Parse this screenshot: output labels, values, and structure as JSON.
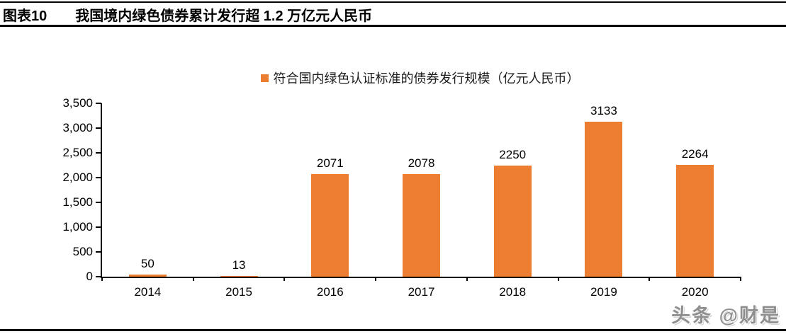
{
  "header": {
    "tag": "图表10",
    "title": "我国境内绿色债券累计发行超 1.2 万亿元人民币"
  },
  "chart_data": {
    "type": "bar",
    "title": "我国境内绿色债券累计发行超 1.2 万亿元人民币",
    "legend": "符合国内绿色认证标准的债券发行规模（亿元人民币）",
    "legend_position": "top-center",
    "categories": [
      "2014",
      "2015",
      "2016",
      "2017",
      "2018",
      "2019",
      "2020"
    ],
    "values": [
      50,
      13,
      2071,
      2078,
      2250,
      3133,
      2264
    ],
    "value_labels": [
      "50",
      "13",
      "2071",
      "2078",
      "2250",
      "3133",
      "2264"
    ],
    "xlabel": "",
    "ylabel": "",
    "ylim": [
      0,
      3500
    ],
    "yticks": [
      {
        "value": 3500,
        "label": "3,500"
      },
      {
        "value": 3000,
        "label": "3,000"
      },
      {
        "value": 2500,
        "label": "2,500"
      },
      {
        "value": 2000,
        "label": "2,000"
      },
      {
        "value": 1500,
        "label": "1,500"
      },
      {
        "value": 1000,
        "label": "1,000"
      },
      {
        "value": 500,
        "label": "500"
      },
      {
        "value": 0,
        "label": "0"
      }
    ],
    "grid": false,
    "bar_color": "#ED7D31"
  },
  "watermark": {
    "text": "头条 @财是"
  },
  "colors": {
    "bar": "#ED7D31",
    "axis": "#000000",
    "text": "#000000",
    "rule": "#000000",
    "watermark": "#8f8f8f"
  }
}
